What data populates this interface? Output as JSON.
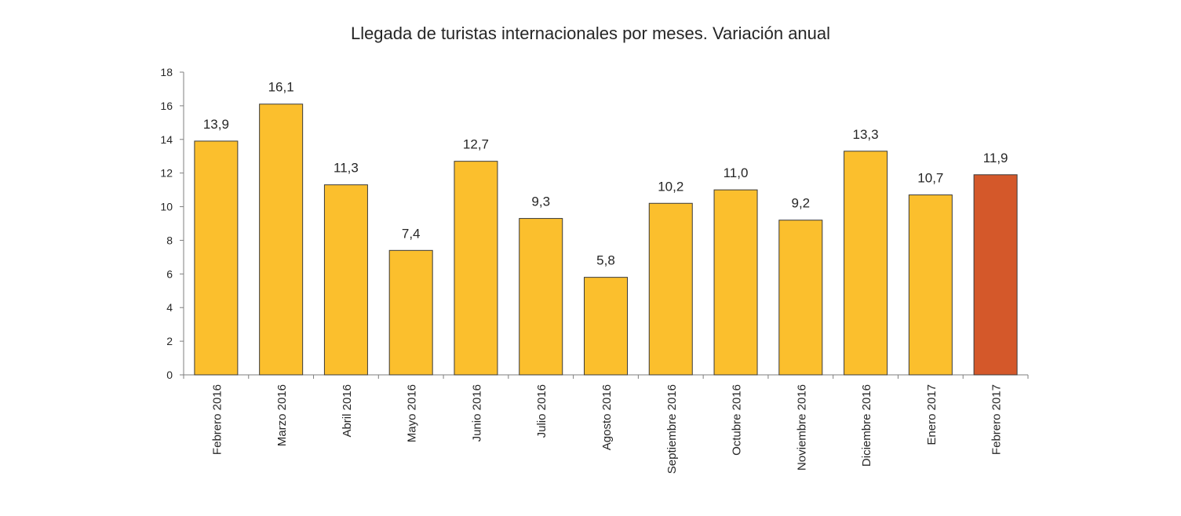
{
  "chart_data": {
    "type": "bar",
    "title": "Llegada de turistas internacionales por meses. Variación anual",
    "categories": [
      "Febrero 2016",
      "Marzo 2016",
      "Abril 2016",
      "Mayo 2016",
      "Junio 2016",
      "Julio 2016",
      "Agosto 2016",
      "Septiembre 2016",
      "Octubre 2016",
      "Noviembre 2016",
      "Diciembre 2016",
      "Enero 2017",
      "Febrero 2017"
    ],
    "values": [
      13.9,
      16.1,
      11.3,
      7.4,
      12.7,
      9.3,
      5.8,
      10.2,
      11.0,
      9.2,
      13.3,
      10.7,
      11.9
    ],
    "value_labels": [
      "13,9",
      "16,1",
      "11,3",
      "7,4",
      "12,7",
      "9,3",
      "5,8",
      "10,2",
      "11,0",
      "9,2",
      "13,3",
      "10,7",
      "11,9"
    ],
    "ylim": [
      0,
      18
    ],
    "yticks": [
      0,
      2,
      4,
      6,
      8,
      10,
      12,
      14,
      16,
      18
    ],
    "grid": false,
    "legend": "none",
    "colors": {
      "bar": "#FBBF2D",
      "highlight": "#D4582A",
      "stroke": "#3a3a3a"
    },
    "highlight_index": 12
  }
}
